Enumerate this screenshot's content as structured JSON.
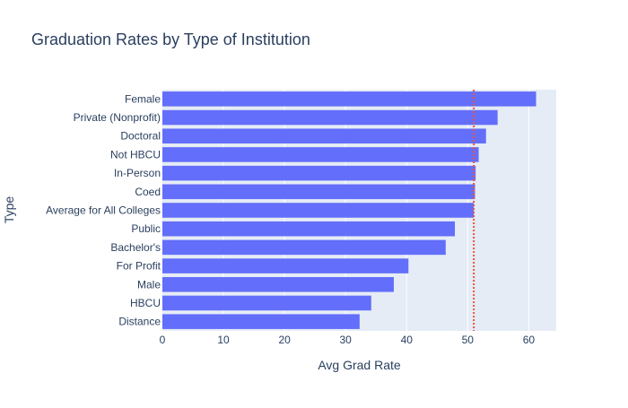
{
  "chart_data": {
    "type": "bar",
    "orientation": "horizontal",
    "title": "Graduation Rates by Type of Institution",
    "xlabel": "Avg Grad Rate",
    "ylabel": "Type",
    "xlim": [
      0,
      64.5
    ],
    "xticks": [
      0,
      10,
      20,
      30,
      40,
      50,
      60
    ],
    "grid": true,
    "categories": [
      "Female",
      "Private (Nonprofit)",
      "Doctoral",
      "Not HBCU",
      "In-Person",
      "Coed",
      "Average for All Colleges",
      "Public",
      "Bachelor's",
      "For Profit",
      "Male",
      "HBCU",
      "Distance"
    ],
    "values": [
      61.2,
      54.9,
      53.0,
      51.8,
      51.3,
      51.2,
      51.0,
      47.9,
      46.4,
      40.3,
      37.9,
      34.2,
      32.3
    ],
    "reference_line": {
      "value": 51.0,
      "style": "dotted",
      "color": "#ef553b"
    },
    "colors": {
      "bar": "#636efa",
      "plot_background": "#e5ecf6",
      "grid": "#ffffff",
      "title": "#2a3f5f",
      "text": "#2a3f5f"
    }
  }
}
